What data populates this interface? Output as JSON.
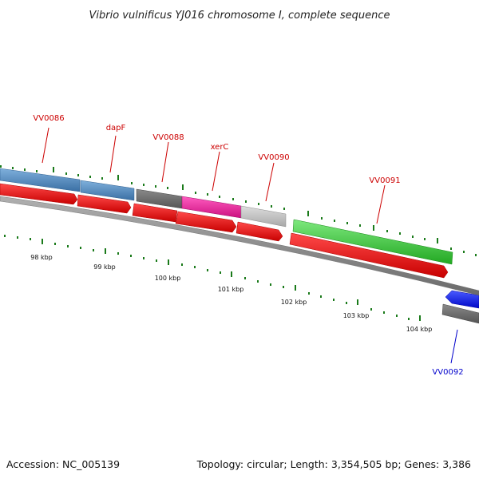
{
  "title": "Vibrio vulnificus YJ016 chromosome I, complete sequence",
  "accession": "Accession: NC_005139",
  "topology": "Topology: circular; Length: 3,354,505 bp; Genes: 3,386",
  "colors": {
    "label_red": "#cc0000",
    "label_blue": "#0000cc",
    "tick_green": "#1a7a1a",
    "backbone": "#888888",
    "steel_blue": "#4a86be",
    "dark_gray": "#666666",
    "magenta": "#e81e9a",
    "light_gray": "#c4c4c4",
    "green": "#3ecb3e",
    "red": "#ee0000",
    "blue": "#0a14ee"
  },
  "genes": [
    {
      "name": "VV0086",
      "label_color": "#cc0000"
    },
    {
      "name": "dapF",
      "label_color": "#cc0000"
    },
    {
      "name": "VV0088",
      "label_color": "#cc0000"
    },
    {
      "name": "xerC",
      "label_color": "#cc0000"
    },
    {
      "name": "VV0090",
      "label_color": "#cc0000"
    },
    {
      "name": "VV0091",
      "label_color": "#cc0000"
    },
    {
      "name": "VV0092",
      "label_color": "#0000cc"
    }
  ],
  "scale_labels": [
    "98 kbp",
    "99 kbp",
    "100 kbp",
    "101 kbp",
    "102 kbp",
    "103 kbp",
    "104 kbp"
  ]
}
